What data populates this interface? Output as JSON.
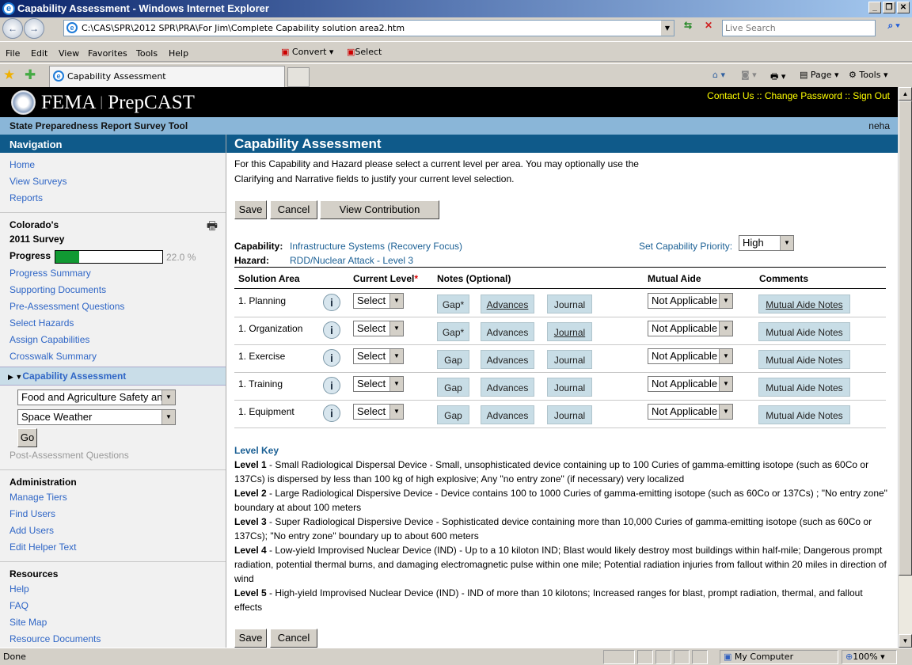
{
  "window": {
    "title": "Capability Assessment - Windows Internet Explorer"
  },
  "browser": {
    "url": "C:\\CAS\\SPR\\2012 SPR\\PRA\\For Jim\\Complete Capability solution area2.htm",
    "search_placeholder": "Live Search",
    "menu": [
      "File",
      "Edit",
      "View",
      "Favorites",
      "Tools",
      "Help"
    ],
    "convert": "Convert",
    "select": "Select",
    "tab": "Capability Assessment",
    "toolbar": {
      "page": "Page",
      "tools": "Tools"
    },
    "status": {
      "text": "Done",
      "zone": "My Computer",
      "zoom": "100%"
    }
  },
  "header": {
    "brand": "FEMA",
    "product": "PrepCAST",
    "links": [
      "Contact Us",
      "Change Password",
      "Sign Out"
    ],
    "separator": "::",
    "subtitle": "State Preparedness Report Survey Tool",
    "user": "neha"
  },
  "sidebar": {
    "title": "Navigation",
    "top_links": [
      "Home",
      "View Surveys",
      "Reports"
    ],
    "survey_line1": "Colorado's",
    "survey_line2": "2011 Survey",
    "progress_label": "Progress",
    "progress_text": "22.0 %",
    "progress_value": 22.0,
    "survey_links": [
      "Progress Summary",
      "Supporting Documents",
      "Pre-Assessment Questions",
      "Select Hazards",
      "Assign Capabilities",
      "Crosswalk Summary"
    ],
    "active": "Capability Assessment",
    "capability_select": "Food and Agriculture Safety an",
    "hazard_select": "Space Weather",
    "go": "Go",
    "post": "Post-Assessment Questions",
    "admin_title": "Administration",
    "admin_links": [
      "Manage Tiers",
      "Find Users",
      "Add Users",
      "Edit Helper Text"
    ],
    "resources_title": "Resources",
    "resource_links": [
      "Help",
      "FAQ",
      "Site Map",
      "Resource Documents"
    ]
  },
  "main": {
    "title": "Capability Assessment",
    "intro_line1": "For this Capability and Hazard please select a current level per area. You may optionally use the",
    "intro_line2": "Clarifying and Narrative fields to justify your current level selection.",
    "save": "Save",
    "cancel": "Cancel",
    "view_contribution": "View Contribution",
    "capability_label": "Capability:",
    "capability": "Infrastructure Systems (Recovery Focus)",
    "hazard_label": "Hazard:",
    "hazard": "RDD/Nuclear Attack - Level 3",
    "priority_label": "Set Capability Priority:",
    "priority": "High",
    "columns": [
      "Solution Area",
      "Current Level",
      "Notes (Optional)",
      "Mutual Aide",
      "Comments"
    ],
    "required_mark": "*",
    "rows": [
      {
        "area": "1. Planning",
        "level": "Select",
        "gap": "Gap*",
        "advances": "Advances",
        "journal": "Journal",
        "mutual": "Not Applicable",
        "notes": "Mutual Aide Notes"
      },
      {
        "area": "1. Organization",
        "level": "Select",
        "gap": "Gap*",
        "advances": "Advances",
        "journal": "Journal",
        "mutual": "Not Applicable",
        "notes": "Mutual Aide Notes"
      },
      {
        "area": "1. Exercise",
        "level": "Select",
        "gap": "Gap",
        "advances": "Advances",
        "journal": "Journal",
        "mutual": "Not Applicable",
        "notes": "Mutual Aide Notes"
      },
      {
        "area": "1. Training",
        "level": "Select",
        "gap": "Gap",
        "advances": "Advances",
        "journal": "Journal",
        "mutual": "Not Applicable",
        "notes": "Mutual Aide Notes"
      },
      {
        "area": "1. Equipment",
        "level": "Select",
        "gap": "Gap",
        "advances": "Advances",
        "journal": "Journal",
        "mutual": "Not Applicable",
        "notes": "Mutual Aide Notes"
      }
    ],
    "level_key_title": "Level Key",
    "levels": [
      {
        "label": "Level 1",
        "text": " - Small Radiological Dispersal Device - Small, unsophisticated device containing up to 100 Curies of gamma-emitting isotope (such as 60Co or 137Cs) is dispersed by less than 100 kg of high explosive; Any \"no entry zone\" (if necessary) very localized"
      },
      {
        "label": "Level 2",
        "text": " - Large Radiological Dispersive Device - Device contains 100 to 1000 Curies of gamma-emitting isotope (such as 60Co or 137Cs) ; \"No entry zone\" boundary at about 100 meters"
      },
      {
        "label": "Level 3",
        "text": " - Super Radiological Dispersive Device - Sophisticated device containing more than 10,000 Curies of gamma-emitting isotope (such as 60Co or 137Cs); \"No entry zone\" boundary up to about 600 meters"
      },
      {
        "label": "Level 4",
        "text": " - Low-yield Improvised Nuclear Device (IND) - Up to a 10 kiloton IND; Blast would likely destroy most buildings within half-mile; Dangerous prompt radiation, potential thermal burns, and damaging electromagnetic pulse within one mile; Potential radiation injuries from fallout within 20 miles in direction of wind"
      },
      {
        "label": "Level 5",
        "text": " - High-yield Improvised Nuclear Device (IND) - IND of more than 10 kilotons; Increased ranges for blast, prompt radiation, thermal, and fallout effects"
      }
    ]
  }
}
